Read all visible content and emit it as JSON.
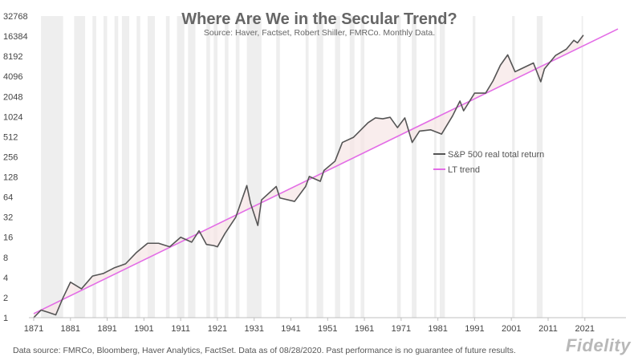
{
  "footer": {
    "note": "Data source: FMRCo, Bloomberg, Haver Analytics, FactSet. Data as of 08/28/2020. Past performance is no guarantee of future results.",
    "logo": "Fidelity"
  },
  "chart_data": {
    "type": "line",
    "title": "Where Are We in the Secular Trend?",
    "subtitle": "Source: Haver, Factset, Robert Shiller, FMRCo. Monthly Data.",
    "xlabel": "",
    "ylabel": "",
    "y_scale": "log2",
    "xlim": [
      1871,
      2030
    ],
    "ylim": [
      1,
      32768
    ],
    "x_ticks": [
      "1871",
      "1881",
      "1891",
      "1901",
      "1911",
      "1921",
      "1931",
      "1941",
      "1951",
      "1961",
      "1971",
      "1981",
      "1991",
      "2001",
      "2011",
      "2021"
    ],
    "y_ticks": [
      "1",
      "2",
      "4",
      "8",
      "16",
      "32",
      "64",
      "128",
      "256",
      "512",
      "1024",
      "2048",
      "4096",
      "8192",
      "16384",
      "32768"
    ],
    "legend": {
      "placement": "right-middle"
    },
    "recession_shading": true,
    "series": [
      {
        "name": "S&P 500 real total return",
        "color": "#555555",
        "x": [
          1871,
          1873,
          1875,
          1877,
          1879,
          1881,
          1884,
          1887,
          1890,
          1893,
          1896,
          1899,
          1902,
          1905,
          1908,
          1911,
          1914,
          1916,
          1918,
          1920,
          1921,
          1923,
          1926,
          1929,
          1930,
          1932,
          1933,
          1937,
          1938,
          1942,
          1945,
          1946,
          1949,
          1950,
          1953,
          1955,
          1958,
          1962,
          1964,
          1966,
          1968,
          1970,
          1972,
          1974,
          1976,
          1979,
          1982,
          1985,
          1987,
          1988,
          1991,
          1994,
          1996,
          1998,
          2000,
          2002,
          2003,
          2007,
          2009,
          2010,
          2013,
          2016,
          2018,
          2019,
          2020.6
        ],
        "values": [
          1.0,
          1.3,
          1.2,
          1.1,
          2.0,
          3.4,
          2.7,
          4.2,
          4.6,
          5.6,
          6.4,
          9.5,
          13,
          13,
          11.5,
          16,
          13.5,
          20,
          12.5,
          12,
          11.5,
          18,
          32,
          95,
          52,
          24,
          58,
          92,
          62,
          55,
          92,
          130,
          110,
          160,
          220,
          420,
          500,
          830,
          980,
          950,
          1000,
          700,
          980,
          420,
          620,
          650,
          560,
          1050,
          1750,
          1250,
          2300,
          2300,
          3500,
          6000,
          8600,
          4800,
          5100,
          6500,
          3400,
          5300,
          8400,
          10500,
          14200,
          13000,
          17000
        ]
      },
      {
        "name": "LT trend",
        "color": "#e36de6",
        "x": [
          1871,
          2030
        ],
        "values": [
          1.15,
          21000
        ]
      }
    ]
  }
}
